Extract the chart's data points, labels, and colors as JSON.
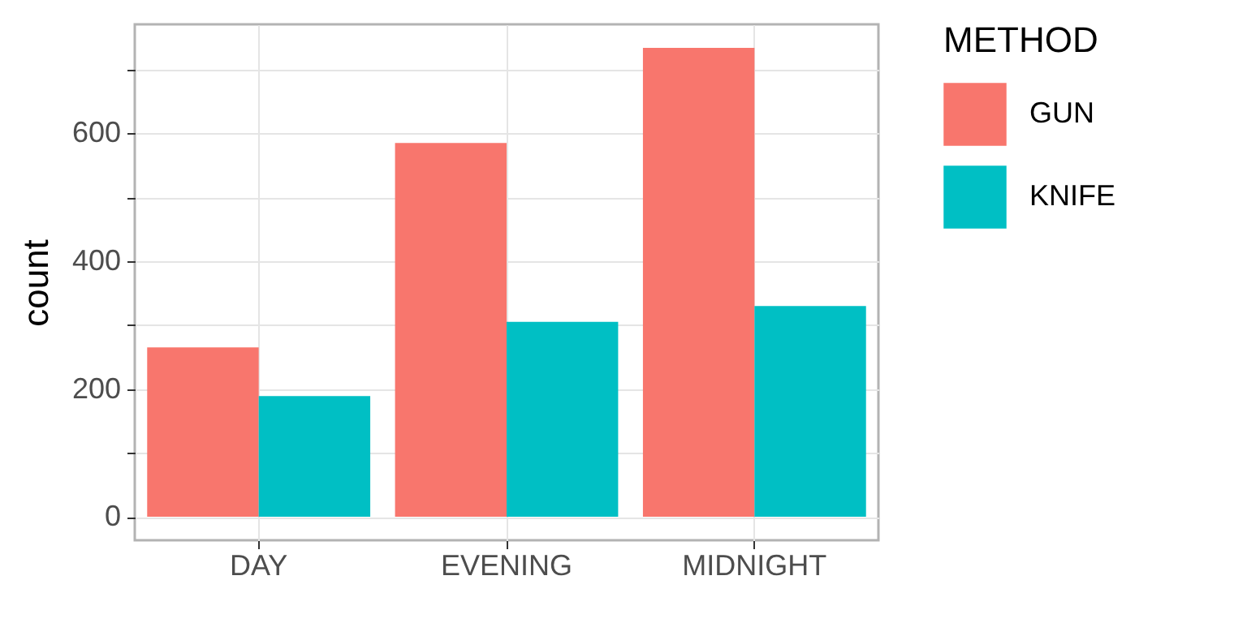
{
  "chart_data": {
    "type": "bar",
    "categories": [
      "DAY",
      "EVENING",
      "MIDNIGHT"
    ],
    "series": [
      {
        "name": "GUN",
        "color": "#f8766d",
        "values": [
          265,
          585,
          734
        ]
      },
      {
        "name": "KNIFE",
        "color": "#00bfc4",
        "values": [
          189,
          305,
          330
        ]
      }
    ],
    "ylabel": "count",
    "legend_title": "METHOD",
    "ylim": [
      -36.7,
      770.7
    ],
    "yticks": [
      0,
      {
        "value": 100,
        "label": null
      },
      200,
      {
        "value": 300,
        "label": null
      },
      400,
      {
        "value": 500,
        "label": null
      },
      600,
      {
        "value": 700,
        "label": null
      }
    ],
    "grid": true,
    "legend": "right"
  }
}
